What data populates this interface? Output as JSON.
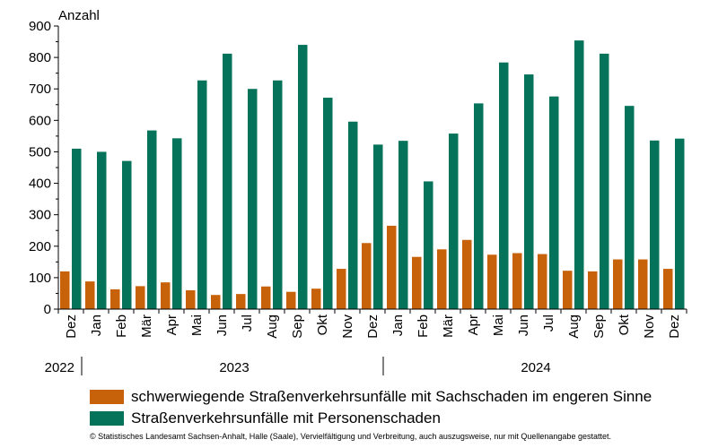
{
  "chart_data": {
    "type": "bar",
    "ylabel": "Anzahl",
    "ylim": [
      0,
      900
    ],
    "yticks": [
      0,
      100,
      200,
      300,
      400,
      500,
      600,
      700,
      800,
      900
    ],
    "categories": [
      "Dez",
      "Jan",
      "Feb",
      "Mär",
      "Apr",
      "Mai",
      "Jun",
      "Jul",
      "Aug",
      "Sep",
      "Okt",
      "Nov",
      "Dez",
      "Jan",
      "Feb",
      "Mär",
      "Apr",
      "Mai",
      "Jun",
      "Jul",
      "Aug",
      "Sep",
      "Okt",
      "Nov",
      "Dez"
    ],
    "year_groups": [
      {
        "label": "2022",
        "start": 0,
        "end": 0
      },
      {
        "label": "2023",
        "start": 1,
        "end": 12
      },
      {
        "label": "2024",
        "start": 13,
        "end": 24
      }
    ],
    "series": [
      {
        "name": "schwerwiegende Straßenverkehrsunfälle mit Sachschaden im engeren Sinne",
        "color": "#c8620a",
        "values": [
          120,
          88,
          63,
          73,
          85,
          60,
          45,
          48,
          72,
          55,
          65,
          128,
          210,
          265,
          166,
          190,
          220,
          173,
          178,
          175,
          122,
          120,
          158,
          158,
          128
        ]
      },
      {
        "name": "Straßenverkehrsunfälle mit Personenschaden",
        "color": "#05735a",
        "values": [
          510,
          500,
          471,
          568,
          543,
          727,
          812,
          700,
          727,
          840,
          672,
          596,
          523,
          535,
          406,
          558,
          654,
          784,
          746,
          676,
          854,
          812,
          646,
          536,
          542
        ]
      }
    ],
    "grid": false,
    "legend": "bottom"
  },
  "footer": "© Statistisches Landesamt Sachsen-Anhalt, Halle (Saale), Vervielfältigung und Verbreitung, auch auszugsweise, nur mit Quellenangabe gestattet."
}
